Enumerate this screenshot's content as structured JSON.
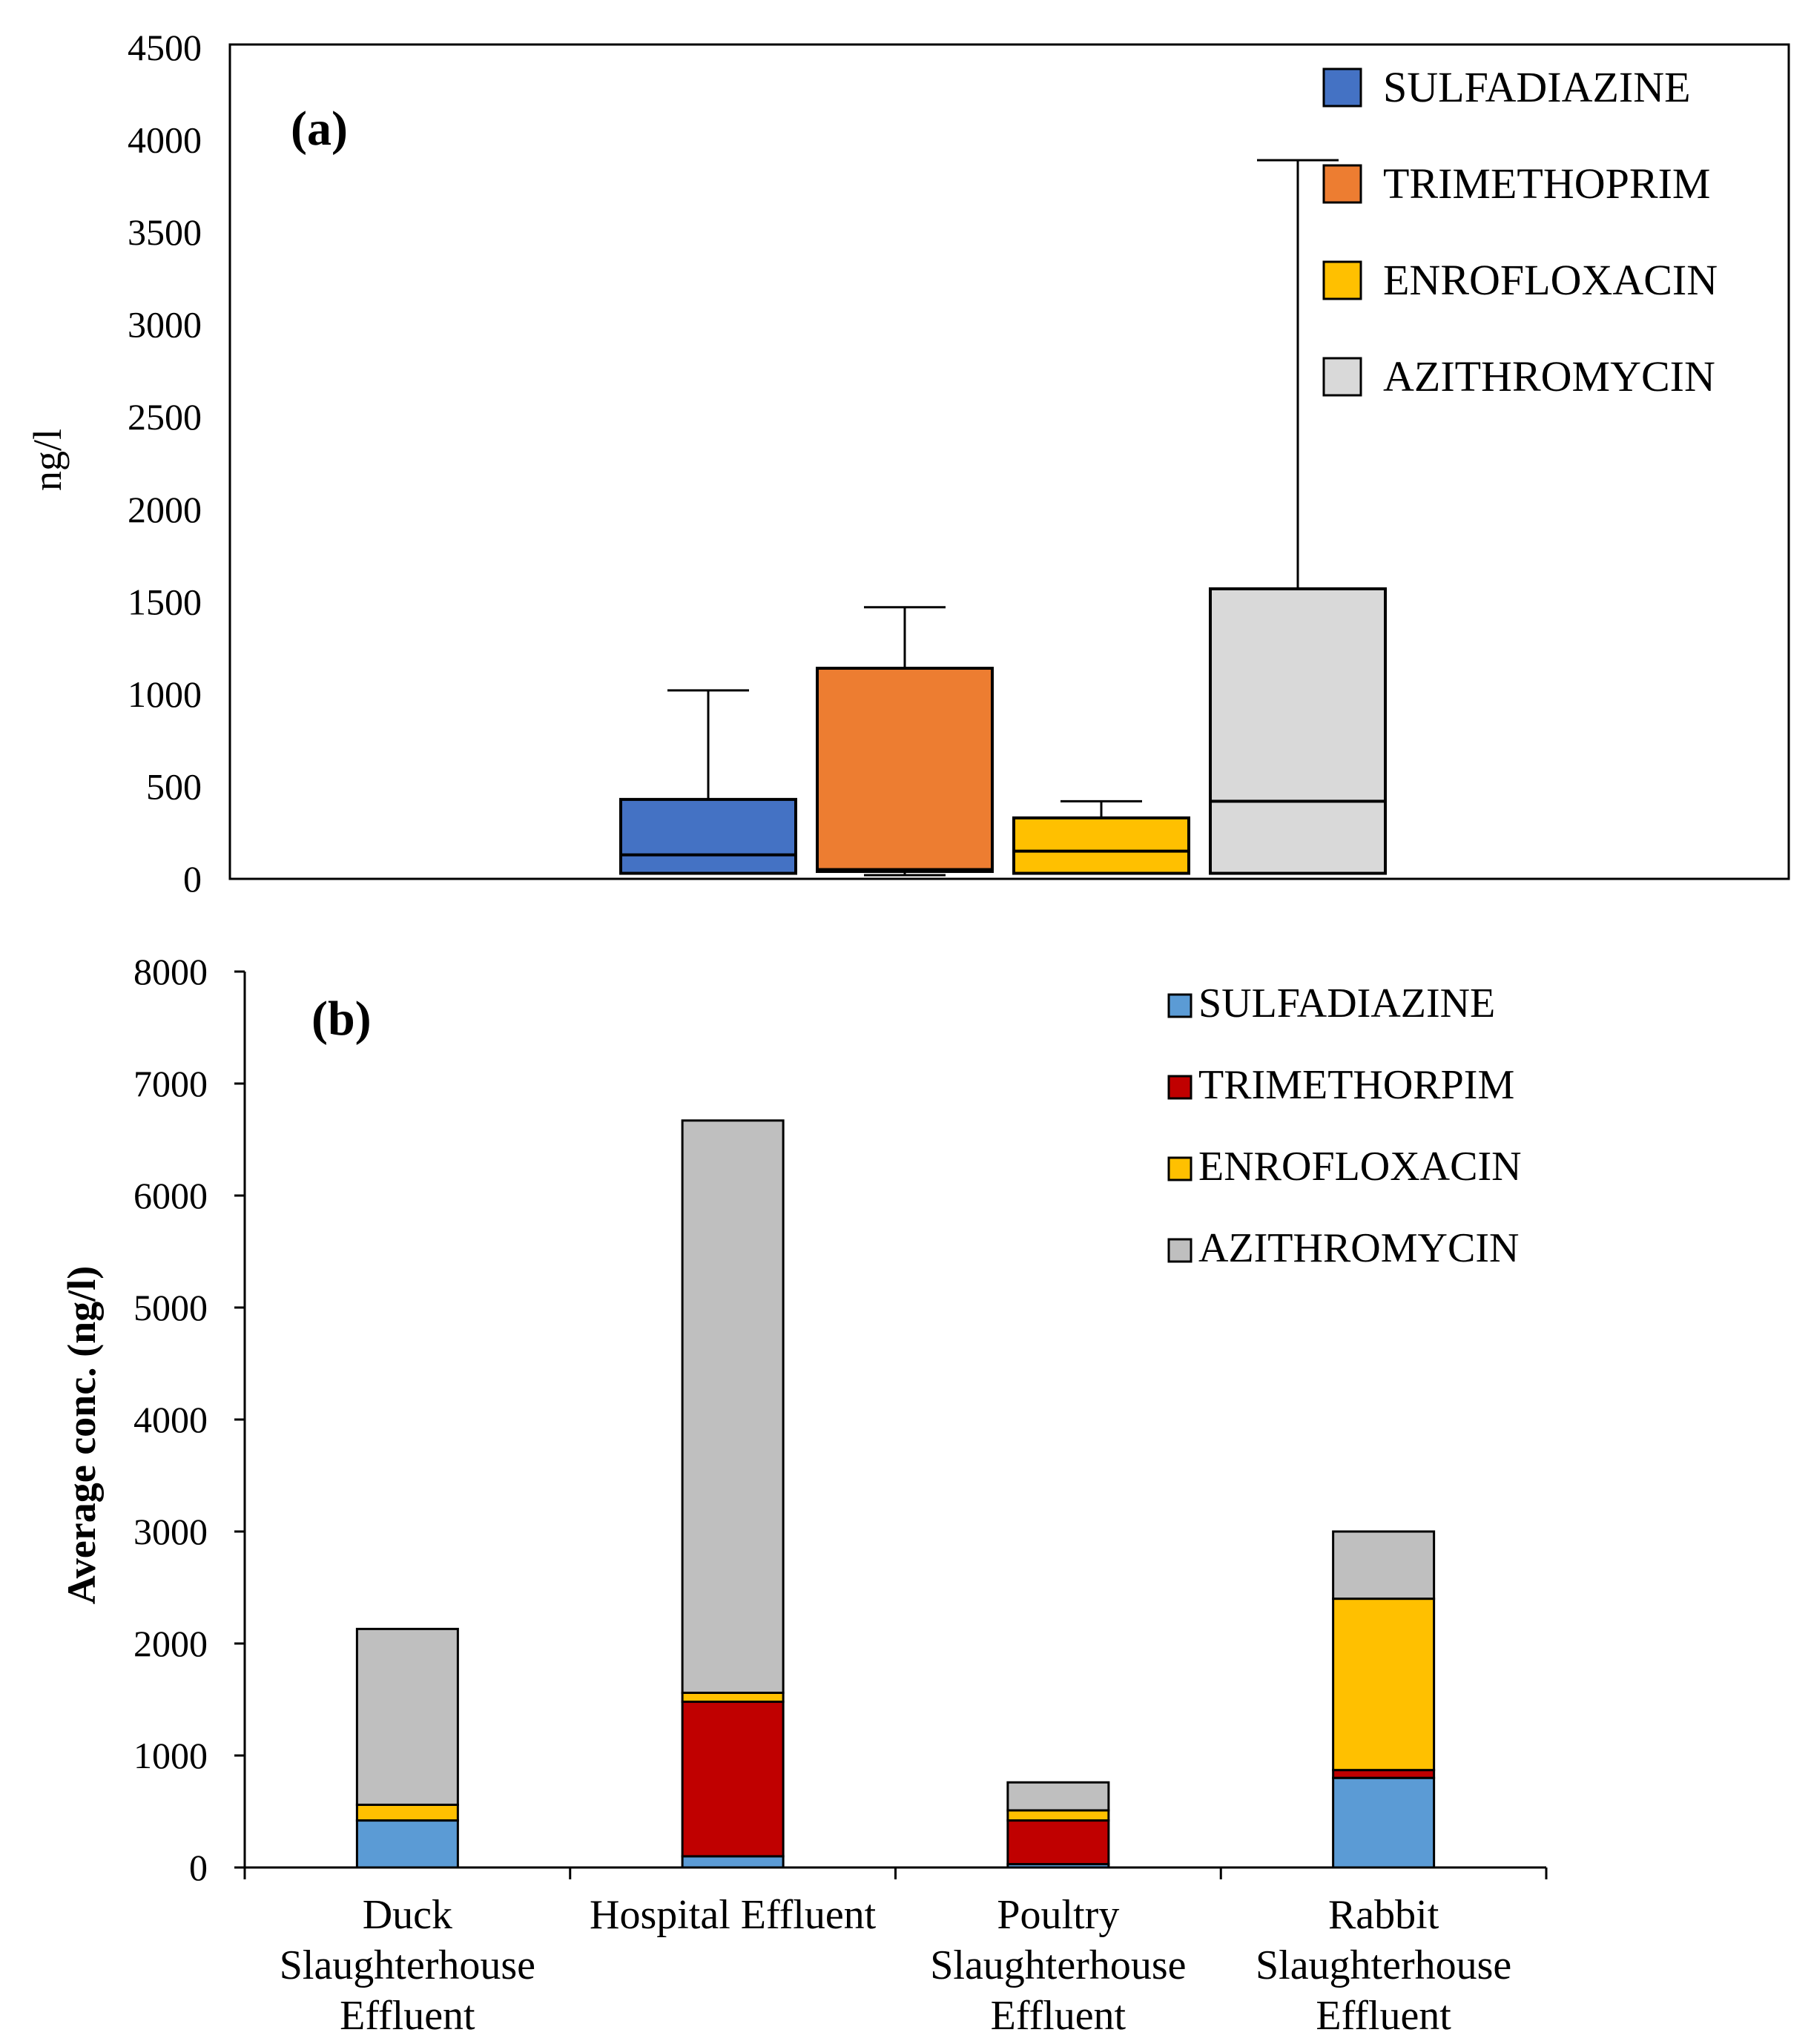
{
  "chart_data": [
    {
      "type": "box",
      "panel_label": "(a)",
      "ylabel": "ng/l",
      "ylim": [
        0,
        4500
      ],
      "yticks": [
        0,
        500,
        1000,
        1500,
        2000,
        2500,
        3000,
        3500,
        4000,
        4500
      ],
      "legend_position": "top-right",
      "series": [
        {
          "name": "SULFADIAZINE",
          "color": "#4472C4",
          "min": 30,
          "q1": 30,
          "median": 130,
          "q3": 430,
          "max": 1020
        },
        {
          "name": "TRIMETHOPRIM",
          "color": "#ED7D31",
          "min": 20,
          "q1": 40,
          "median": 50,
          "q3": 1140,
          "max": 1470
        },
        {
          "name": "ENROFLOXACIN",
          "color": "#FFC000",
          "min": 30,
          "q1": 30,
          "median": 150,
          "q3": 330,
          "max": 420
        },
        {
          "name": "AZITHROMYCIN",
          "color": "#D9D9D9",
          "min": 30,
          "q1": 30,
          "median": 420,
          "q3": 1570,
          "max": 3890
        }
      ]
    },
    {
      "type": "stacked-bar",
      "panel_label": "(b)",
      "ylabel": "Average conc. (ng/l)",
      "ylim": [
        0,
        8000
      ],
      "yticks": [
        0,
        1000,
        2000,
        3000,
        4000,
        5000,
        6000,
        7000,
        8000
      ],
      "legend_position": "top-right",
      "categories": [
        [
          "Duck",
          "Slaughterhouse",
          "Effluent"
        ],
        [
          "Hospital Effluent"
        ],
        [
          "Poultry",
          "Slaughterhouse",
          "Effluent"
        ],
        [
          "Rabbit",
          "Slaughterhouse",
          "Effluent"
        ]
      ],
      "series": [
        {
          "name": "SULFADIAZINE",
          "color": "#5B9BD5",
          "values": [
            420,
            100,
            30,
            800
          ]
        },
        {
          "name": "TRIMETHORPIM",
          "color": "#C00000",
          "values": [
            0,
            1380,
            390,
            70
          ]
        },
        {
          "name": "ENROFLOXACIN",
          "color": "#FFC000",
          "values": [
            140,
            80,
            90,
            1530
          ]
        },
        {
          "name": "AZITHROMYCIN",
          "color": "#BFBFBF",
          "values": [
            1570,
            5110,
            250,
            600
          ]
        }
      ]
    }
  ]
}
